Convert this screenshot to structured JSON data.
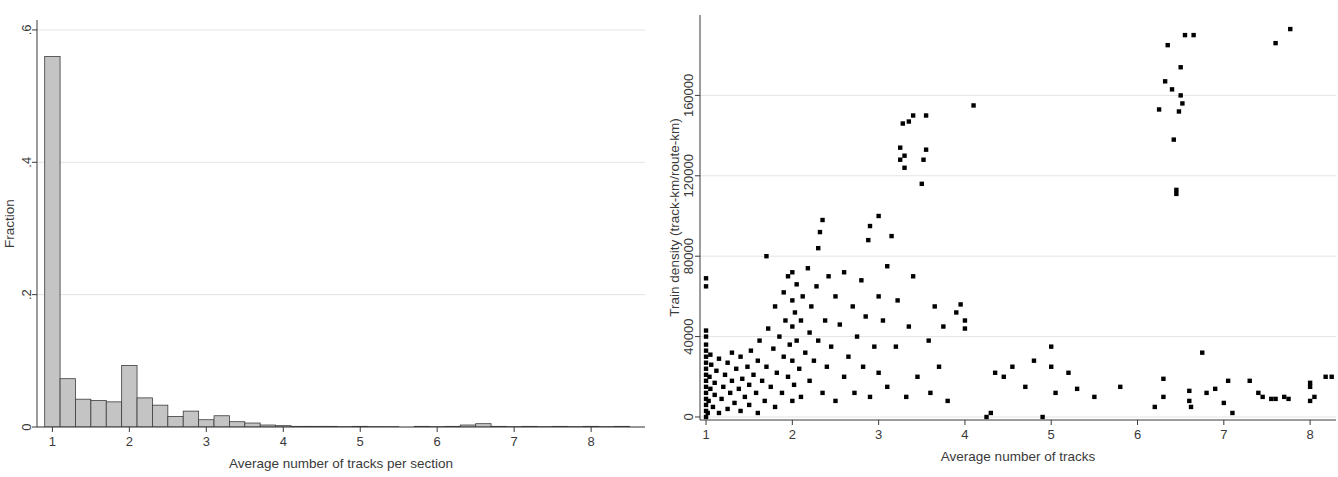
{
  "chart_data": [
    {
      "type": "histogram",
      "x_label": "Average number of tracks per section",
      "y_label": "Fraction",
      "bins": [
        0.9,
        1.1,
        1.3,
        1.5,
        1.7,
        1.9,
        2.1,
        2.3,
        2.5,
        2.7,
        2.9,
        3.1,
        3.3,
        3.5,
        3.7,
        3.9,
        4.1,
        4.3,
        4.5,
        4.7,
        4.9,
        5.1,
        5.3,
        5.5,
        5.7,
        5.9,
        6.1,
        6.3,
        6.5,
        6.7,
        6.9,
        7.1,
        7.3,
        7.5,
        7.7,
        7.9,
        8.1,
        8.3,
        8.5
      ],
      "values": [
        0.56,
        0.073,
        0.042,
        0.04,
        0.038,
        0.093,
        0.044,
        0.033,
        0.016,
        0.024,
        0.011,
        0.017,
        0.008,
        0.006,
        0.003,
        0.002,
        0.001,
        0.001,
        0.001,
        0.0005,
        0.001,
        0.0005,
        0.0005,
        0,
        0.001,
        0.0005,
        0.001,
        0.003,
        0.005,
        0.001,
        0.0005,
        0.001,
        0.0005,
        0.001,
        0.0005,
        0.001,
        0.0005,
        0.001
      ],
      "color": "#c4c4c4",
      "xlim": [
        0.8,
        8.7
      ],
      "xticks": [
        1,
        2,
        3,
        4,
        5,
        6,
        7,
        8
      ],
      "ylim": [
        0,
        0.615
      ],
      "yticks": [
        0,
        {
          "value": 0.2,
          "label": ".2"
        },
        {
          "value": 0.4,
          "label": ".4"
        },
        {
          "value": 0.6,
          "label": ".6"
        }
      ],
      "grid": true
    },
    {
      "type": "scatter",
      "x_label": "Average number of tracks",
      "y_label": "Train density (track-km/route-km)",
      "marker": "square",
      "color": "#000000",
      "x": [
        1,
        1,
        1,
        1,
        1,
        1,
        1,
        1,
        1,
        1,
        1,
        1,
        1,
        1,
        1,
        1,
        1,
        1.02,
        1.03,
        1.05,
        1.04,
        1.06,
        1.05,
        1.08,
        1.1,
        1.1,
        1.12,
        1.15,
        1.15,
        1.18,
        1.2,
        1.22,
        1.25,
        1.25,
        1.28,
        1.3,
        1.3,
        1.33,
        1.35,
        1.38,
        1.4,
        1.4,
        1.42,
        1.45,
        1.48,
        1.5,
        1.5,
        1.52,
        1.55,
        1.58,
        1.6,
        1.6,
        1.62,
        1.65,
        1.68,
        1.7,
        1.7,
        1.72,
        1.75,
        1.78,
        1.8,
        1.8,
        1.82,
        1.85,
        1.88,
        1.9,
        1.9,
        1.92,
        1.95,
        1.95,
        1.97,
        2,
        2,
        2,
        2,
        2,
        2.02,
        2.03,
        2.05,
        2.05,
        2.08,
        2.1,
        2.1,
        2.12,
        2.15,
        2.18,
        2.2,
        2.2,
        2.22,
        2.25,
        2.28,
        2.3,
        2.3,
        2.32,
        2.35,
        2.35,
        2.38,
        2.4,
        2.42,
        2.45,
        2.5,
        2.5,
        2.55,
        2.6,
        2.6,
        2.65,
        2.7,
        2.72,
        2.75,
        2.8,
        2.82,
        2.85,
        2.88,
        2.9,
        2.9,
        2.95,
        3,
        3,
        3,
        3.05,
        3.1,
        3.1,
        3.15,
        3.2,
        3.22,
        3.25,
        3.25,
        3.28,
        3.3,
        3.3,
        3.32,
        3.35,
        3.35,
        3.4,
        3.4,
        3.45,
        3.5,
        3.52,
        3.55,
        3.55,
        3.58,
        3.6,
        3.65,
        3.7,
        3.75,
        3.8,
        3.9,
        3.95,
        4,
        4,
        4.1,
        4.25,
        4.3,
        4.35,
        4.45,
        4.55,
        4.7,
        4.8,
        4.9,
        5,
        5,
        5.05,
        5.2,
        5.3,
        5.5,
        5.8,
        6.2,
        6.25,
        6.3,
        6.3,
        6.32,
        6.35,
        6.4,
        6.42,
        6.45,
        6.45,
        6.48,
        6.5,
        6.5,
        6.52,
        6.55,
        6.6,
        6.6,
        6.62,
        6.65,
        6.75,
        6.8,
        6.9,
        7,
        7.05,
        7.1,
        7.6,
        7.3,
        7.4,
        7.77,
        7.45,
        7.55,
        7.6,
        7.7,
        7.75,
        8,
        8,
        8,
        8.05,
        8.18,
        8.25
      ],
      "values": [
        0,
        3000,
        6000,
        9000,
        12000,
        15000,
        18000,
        21000,
        24000,
        27000,
        30000,
        33000,
        36000,
        40000,
        43000,
        65000,
        69000,
        2000,
        8000,
        14000,
        20000,
        26000,
        31000,
        5000,
        11000,
        17000,
        23000,
        29000,
        2000,
        9000,
        15000,
        21000,
        4000,
        27000,
        12000,
        18000,
        32000,
        7000,
        24000,
        14000,
        3000,
        30000,
        19000,
        10000,
        25000,
        6000,
        16000,
        33000,
        21000,
        12000,
        2000,
        28000,
        38000,
        18000,
        8000,
        25000,
        80000,
        44000,
        15000,
        34000,
        5000,
        55000,
        22000,
        40000,
        12000,
        30000,
        62000,
        48000,
        20000,
        70000,
        36000,
        8000,
        28000,
        45000,
        58000,
        72000,
        16000,
        52000,
        38000,
        66000,
        24000,
        48000,
        10000,
        60000,
        32000,
        74000,
        42000,
        18000,
        55000,
        28000,
        65000,
        38000,
        84000,
        92000,
        98000,
        12000,
        48000,
        25000,
        70000,
        35000,
        60000,
        8000,
        46000,
        72000,
        20000,
        30000,
        55000,
        12000,
        40000,
        68000,
        25000,
        50000,
        88000,
        10000,
        95000,
        35000,
        100000,
        60000,
        22000,
        48000,
        15000,
        75000,
        90000,
        35000,
        58000,
        128000,
        134000,
        146000,
        124000,
        130000,
        10000,
        147000,
        45000,
        150000,
        70000,
        20000,
        116000,
        128000,
        133000,
        150000,
        38000,
        12000,
        55000,
        25000,
        45000,
        8000,
        52000,
        56000,
        44000,
        48000,
        155000,
        0,
        2000,
        22000,
        20000,
        25000,
        15000,
        28000,
        0,
        35000,
        25000,
        12000,
        22000,
        14000,
        10000,
        15000,
        5000,
        153000,
        10000,
        19000,
        167000,
        185000,
        163000,
        138000,
        113000,
        111000,
        152000,
        160000,
        174000,
        156000,
        190000,
        8000,
        13000,
        5000,
        190000,
        32000,
        12000,
        14000,
        7000,
        18000,
        2000,
        186000,
        18000,
        12000,
        193000,
        10000,
        9000,
        9000,
        10000,
        9000,
        15000,
        17000,
        8000,
        10000,
        20000,
        20000
      ],
      "xlim": [
        0.93,
        8.3
      ],
      "xticks": [
        1,
        2,
        3,
        4,
        5,
        6,
        7,
        8
      ],
      "ylim": [
        -1500,
        200000
      ],
      "yticks": [
        0,
        40000,
        80000,
        120000,
        160000
      ],
      "grid": true
    }
  ]
}
